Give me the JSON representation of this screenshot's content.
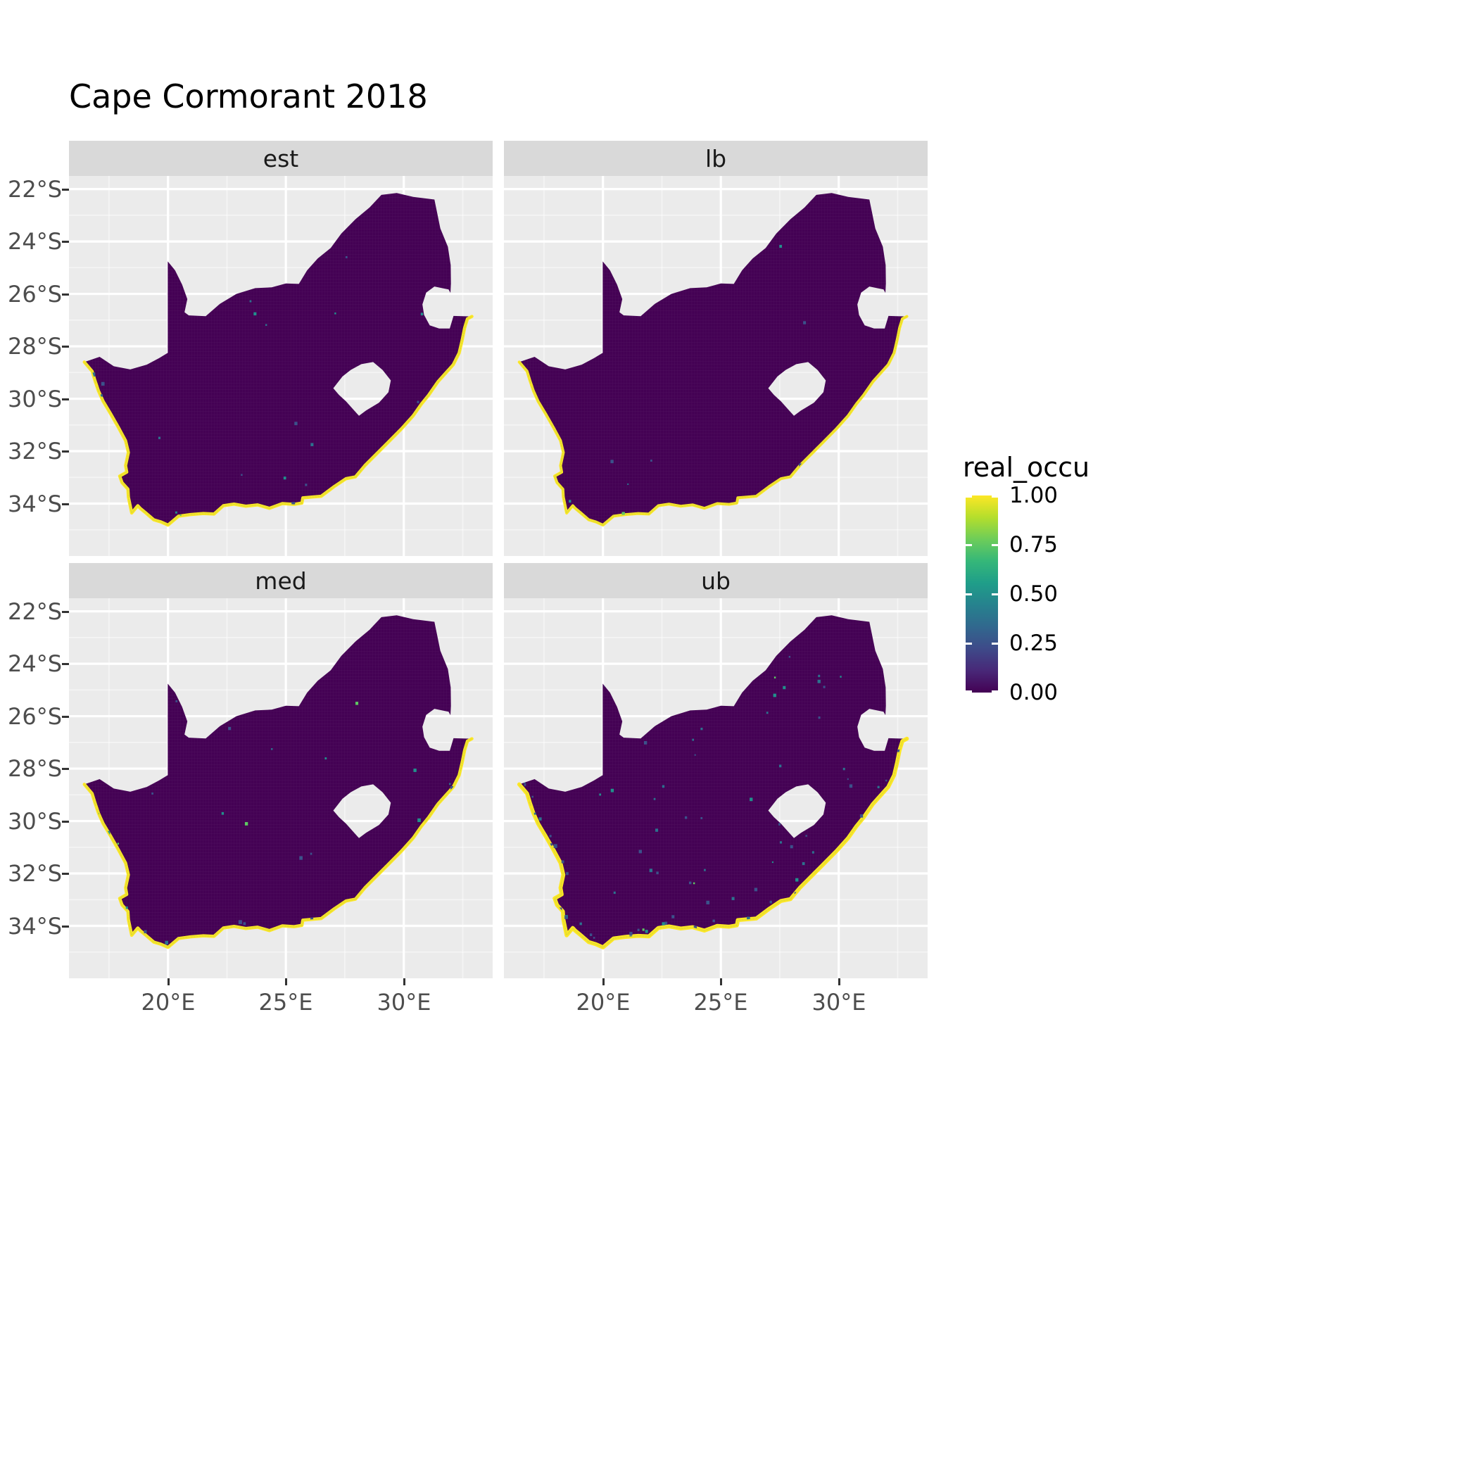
{
  "title": "Cape Cormorant 2018",
  "facets": [
    {
      "label": "est"
    },
    {
      "label": "lb"
    },
    {
      "label": "med"
    },
    {
      "label": "ub"
    }
  ],
  "axes": {
    "x": {
      "labels": [
        "20°E",
        "25°E",
        "30°E"
      ],
      "values": [
        20,
        25,
        30
      ]
    },
    "y": {
      "labels": [
        "22°S",
        "24°S",
        "26°S",
        "28°S",
        "30°S",
        "32°S",
        "34°S"
      ],
      "values": [
        22,
        24,
        26,
        28,
        30,
        32,
        34
      ]
    }
  },
  "legend": {
    "title": "real_occu",
    "tick_labels": [
      "1.00",
      "0.75",
      "0.50",
      "0.25",
      "0.00"
    ],
    "tick_values": [
      1.0,
      0.75,
      0.5,
      0.25,
      0.0
    ]
  },
  "colors": {
    "panel_bg": "#EBEBEB",
    "strip_bg": "#D9D9D9",
    "grid": "#FFFFFF",
    "axis_text": "#4D4D4D",
    "tick_mark": "#333333",
    "occu_low": "#440154",
    "occu_high": "#FDE725",
    "speckle": [
      "#3B528B",
      "#2C728E",
      "#21918C",
      "#5EC962"
    ]
  },
  "chart_data": {
    "type": "heatmap",
    "subtype": "faceted raster map",
    "region": "South Africa",
    "title": "Cape Cormorant 2018",
    "legend_title": "real_occu",
    "value_range": [
      0,
      1
    ],
    "legend_breaks": [
      0.0,
      0.25,
      0.5,
      0.75,
      1.0
    ],
    "color_scale": {
      "name": "viridis",
      "stops": [
        "#440154",
        "#482878",
        "#3E4A89",
        "#31688E",
        "#26828E",
        "#1F9E89",
        "#35B779",
        "#6DCD59",
        "#B4DE2C",
        "#FDE725"
      ]
    },
    "x_axis": {
      "unit": "degrees East",
      "ticks": [
        20,
        25,
        30
      ],
      "range": [
        15.8,
        33.77
      ]
    },
    "y_axis": {
      "unit": "degrees South",
      "ticks": [
        22,
        24,
        26,
        28,
        30,
        32,
        34
      ],
      "range": [
        21.5,
        36.0
      ]
    },
    "grid": true,
    "legend_position": "right",
    "pattern": "Interior cells of South Africa are ~0.00 occupancy (dark purple); cells along the Atlantic and Indian Ocean coastline are ~1.00 (yellow); Lesotho is masked out (no data).",
    "facets": [
      {
        "name": "est",
        "inland_speckle": 18,
        "coastal_speckle": 10,
        "coastal_intensity": 1.0
      },
      {
        "name": "lb",
        "inland_speckle": 8,
        "coastal_speckle": 6,
        "coastal_intensity": 0.9
      },
      {
        "name": "med",
        "inland_speckle": 22,
        "coastal_speckle": 12,
        "coastal_intensity": 1.0
      },
      {
        "name": "ub",
        "inland_speckle": 70,
        "coastal_speckle": 35,
        "coastal_intensity": 1.25
      }
    ]
  }
}
